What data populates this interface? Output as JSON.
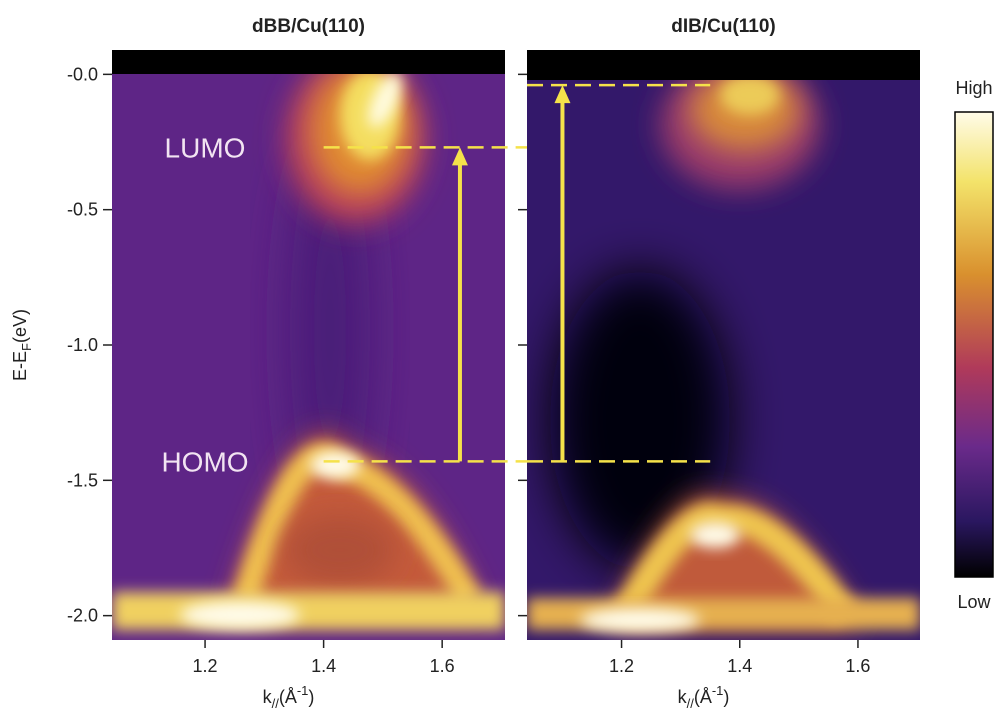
{
  "chart_data": [
    {
      "type": "heatmap",
      "title": "dBB/Cu(110)",
      "y_label": "E-E",
      "y_label_sub": "F",
      "y_label_end": "(eV)",
      "x_label": "k",
      "x_label_sub": "//",
      "x_label_mid": "(Å",
      "x_label_sup": "-1",
      "x_label_end": ")",
      "xlim": [
        1.043,
        1.706
      ],
      "xticks": [
        1.2,
        1.4,
        1.6
      ],
      "ylim": [
        -2.09,
        0.09
      ],
      "yticks": [
        {
          "value": 0,
          "label": "-0.0"
        },
        -0.5,
        {
          "value": -1,
          "label": "-1.0"
        },
        -1.5,
        {
          "value": -2,
          "label": "-2.0"
        }
      ],
      "level_labels": [
        "LUMO",
        "HOMO"
      ],
      "lumo_level": -0.27,
      "homo_level": -1.43,
      "line_start_k": 1.4,
      "arrow_k": 1.63
    },
    {
      "type": "heatmap",
      "title": "dIB/Cu(110)",
      "x_label": "k",
      "x_label_sub": "//",
      "x_label_mid": "(Å",
      "x_label_sup": "-1",
      "x_label_end": ")",
      "xlim": [
        1.04,
        1.705
      ],
      "xticks": [
        1.2,
        1.4,
        1.6
      ],
      "ylim": [
        -2.09,
        0.09
      ],
      "yticks": [
        {
          "value": 0,
          "label": "-0.0"
        },
        -0.5,
        {
          "value": -1,
          "label": "-1.0"
        },
        -1.5,
        {
          "value": -2,
          "label": "-2.0"
        }
      ],
      "lumo_level": -0.04,
      "homo_level": -1.43,
      "line_end_k": 1.35,
      "arrow_k": 1.1
    }
  ],
  "colorbar": {
    "high": "High",
    "low": "Low"
  }
}
